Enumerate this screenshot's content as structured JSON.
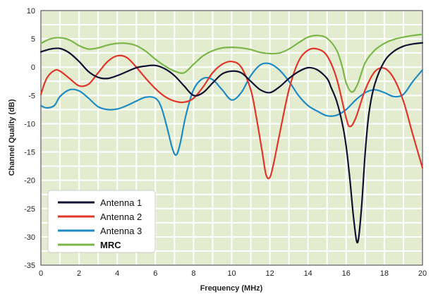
{
  "chart_data": {
    "type": "line",
    "xlabel": "Frequency (MHz)",
    "ylabel": "Channel Quality (dB)",
    "xlim": [
      0,
      20
    ],
    "ylim": [
      -35,
      10
    ],
    "xticks": [
      "0",
      "2",
      "4",
      "6",
      "8",
      "10",
      "12",
      "14",
      "16",
      "18",
      "20"
    ],
    "yticks": [
      "10",
      "5",
      "0",
      "-5",
      "-10",
      "-15",
      "-20",
      "-25",
      "-30",
      "-35"
    ],
    "grid": true,
    "legend_position": "bottom-left",
    "background_color": "#e4ecd0",
    "grid_color": "#ffffff",
    "series": [
      {
        "name": "Antenna 1",
        "color": "#111133",
        "bold": false,
        "x": [
          0,
          0.5,
          1,
          1.5,
          2,
          2.5,
          3,
          3.5,
          4,
          4.5,
          5,
          5.5,
          6,
          6.5,
          7,
          7.5,
          8,
          8.5,
          9,
          9.5,
          10,
          10.5,
          11,
          11.5,
          12,
          12.5,
          13,
          13.5,
          14,
          14.5,
          15,
          15.2,
          15.5,
          15.8,
          16,
          16.2,
          16.4,
          16.6,
          16.8,
          17,
          17.2,
          17.5,
          18,
          18.5,
          19,
          19.5,
          20
        ],
        "y": [
          2.7,
          3.2,
          3.3,
          2.5,
          1.0,
          -0.8,
          -1.8,
          -2.0,
          -1.5,
          -0.8,
          -0.1,
          0.2,
          0.3,
          -0.3,
          -1.5,
          -3.3,
          -5.0,
          -4.5,
          -2.8,
          -1.2,
          -0.7,
          -1.0,
          -2.5,
          -4.0,
          -4.5,
          -3.5,
          -2.0,
          -0.8,
          -0.1,
          -0.5,
          -2.0,
          -3.5,
          -6.0,
          -10.0,
          -14.0,
          -20.0,
          -27.0,
          -31.0,
          -25.0,
          -15.0,
          -8.0,
          -3.0,
          1.0,
          2.8,
          3.7,
          4.1,
          4.3
        ]
      },
      {
        "name": "Antenna 2",
        "color": "#e0352b",
        "bold": false,
        "x": [
          0,
          0.3,
          0.7,
          1,
          1.5,
          2,
          2.5,
          3,
          3.5,
          4,
          4.5,
          5,
          5.5,
          6,
          6.5,
          7,
          7.5,
          8,
          8.5,
          9,
          9.5,
          10,
          10.5,
          11,
          11.3,
          11.6,
          11.8,
          12,
          12.2,
          12.5,
          13,
          13.5,
          14,
          14.5,
          15,
          15.5,
          16,
          16.2,
          16.5,
          17,
          17.5,
          18,
          18.5,
          19,
          19.5,
          20
        ],
        "y": [
          -4.8,
          -2.0,
          -0.6,
          -0.7,
          -2.0,
          -3.3,
          -3.0,
          -1.0,
          1.0,
          2.0,
          1.7,
          0.0,
          -2.0,
          -3.8,
          -5.2,
          -6.0,
          -6.2,
          -5.5,
          -3.5,
          -1.0,
          0.5,
          1.0,
          0.0,
          -4.0,
          -9.0,
          -15.0,
          -19.0,
          -19.5,
          -17.0,
          -12.0,
          -4.0,
          1.0,
          3.0,
          3.2,
          2.0,
          -2.0,
          -9.0,
          -10.5,
          -9.0,
          -4.0,
          -0.8,
          -0.2,
          -2.0,
          -6.0,
          -12.0,
          -17.8
        ]
      },
      {
        "name": "Antenna 3",
        "color": "#1e8bc3",
        "bold": false,
        "x": [
          0,
          0.3,
          0.7,
          1,
          1.5,
          2,
          2.5,
          3,
          3.5,
          4,
          4.5,
          5,
          5.5,
          6,
          6.3,
          6.6,
          6.9,
          7.1,
          7.3,
          7.6,
          8,
          8.5,
          9,
          9.5,
          10,
          10.5,
          11,
          11.5,
          12,
          12.5,
          13,
          13.5,
          14,
          14.5,
          15,
          15.5,
          16,
          16.5,
          17,
          17.5,
          18,
          18.5,
          19,
          19.5,
          20
        ],
        "y": [
          -6.8,
          -7.2,
          -6.8,
          -5.2,
          -4.0,
          -4.2,
          -5.5,
          -7.0,
          -7.5,
          -7.4,
          -6.8,
          -6.0,
          -5.3,
          -5.5,
          -7.0,
          -10.5,
          -14.5,
          -15.5,
          -13.5,
          -8.5,
          -4.0,
          -2.0,
          -2.2,
          -4.0,
          -5.8,
          -4.5,
          -1.5,
          0.4,
          0.6,
          -0.5,
          -2.5,
          -5.0,
          -6.8,
          -7.8,
          -8.6,
          -8.5,
          -7.5,
          -5.8,
          -4.5,
          -4.0,
          -4.5,
          -5.2,
          -4.8,
          -2.5,
          -0.5
        ]
      },
      {
        "name": "MRC",
        "color": "#7ab648",
        "bold": true,
        "x": [
          0,
          0.5,
          1,
          1.5,
          2,
          2.5,
          3,
          3.5,
          4,
          4.5,
          5,
          5.5,
          6,
          6.5,
          7,
          7.5,
          8,
          8.5,
          9,
          9.5,
          10,
          10.5,
          11,
          11.5,
          12,
          12.5,
          13,
          13.5,
          14,
          14.5,
          15,
          15.5,
          15.8,
          16,
          16.3,
          16.6,
          17,
          17.5,
          18,
          18.5,
          19,
          19.5,
          20
        ],
        "y": [
          4.2,
          5.0,
          5.2,
          4.8,
          3.8,
          3.2,
          3.4,
          3.9,
          4.2,
          4.2,
          3.8,
          2.8,
          1.4,
          0.2,
          -0.7,
          -1.0,
          0.5,
          2.0,
          2.9,
          3.4,
          3.5,
          3.4,
          3.1,
          2.6,
          2.4,
          2.5,
          3.2,
          4.3,
          5.3,
          5.6,
          5.1,
          3.0,
          0.0,
          -2.8,
          -4.4,
          -3.0,
          0.8,
          3.0,
          4.2,
          4.9,
          5.3,
          5.6,
          5.8
        ]
      }
    ]
  }
}
